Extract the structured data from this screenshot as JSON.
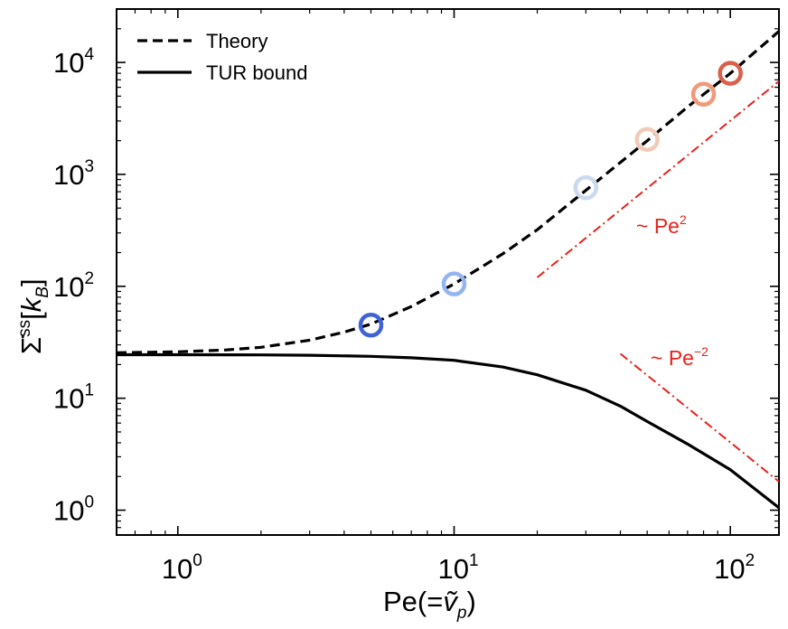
{
  "chart_data": {
    "type": "line",
    "x_scale": "log",
    "y_scale": "log",
    "xlim": [
      0.6,
      150
    ],
    "ylim": [
      0.6,
      30000
    ],
    "xlabel": "Pe(=ṽ_p)",
    "xlabel_parts": {
      "main": "Pe(=",
      "var": "ṽ",
      "sub": "p",
      "close": ")"
    },
    "ylabel_parts": {
      "sym": "Σ̇",
      "sup": "ss",
      "bracket_open": "[",
      "var": "k",
      "sub": "B",
      "bracket_close": "]"
    },
    "x_ticks": [
      {
        "value": 1,
        "base": "10",
        "exp": "0"
      },
      {
        "value": 10,
        "base": "10",
        "exp": "1"
      },
      {
        "value": 100,
        "base": "10",
        "exp": "2"
      }
    ],
    "y_ticks": [
      {
        "value": 1,
        "base": "10",
        "exp": "0"
      },
      {
        "value": 10,
        "base": "10",
        "exp": "1"
      },
      {
        "value": 100,
        "base": "10",
        "exp": "2"
      },
      {
        "value": 1000,
        "base": "10",
        "exp": "3"
      },
      {
        "value": 10000,
        "base": "10",
        "exp": "4"
      }
    ],
    "grid": false,
    "legend_position": "top-left",
    "series": [
      {
        "name": "Theory",
        "style": "dashed",
        "color": "#000000",
        "x": [
          0.6,
          1,
          1.5,
          2,
          3,
          4,
          5,
          7,
          10,
          15,
          20,
          30,
          50,
          70,
          100,
          150
        ],
        "y": [
          25.5,
          26,
          27,
          28.5,
          33,
          39,
          46,
          66,
          105,
          195,
          320,
          720,
          2000,
          4000,
          8000,
          19000
        ]
      },
      {
        "name": "TUR bound",
        "style": "solid",
        "color": "#000000",
        "x": [
          0.6,
          1,
          2,
          3,
          5,
          7,
          10,
          15,
          20,
          30,
          40,
          50,
          70,
          100,
          150
        ],
        "y": [
          24.5,
          24.5,
          24.4,
          24.2,
          23.7,
          23.0,
          21.8,
          19.0,
          16.2,
          11.8,
          8.5,
          6.2,
          3.9,
          2.3,
          1.05
        ]
      }
    ],
    "markers": [
      {
        "x": 5,
        "y": 45,
        "color": "#3f63d5"
      },
      {
        "x": 10,
        "y": 105,
        "color": "#94b5f2"
      },
      {
        "x": 30,
        "y": 760,
        "color": "#cbd8ee"
      },
      {
        "x": 50,
        "y": 2050,
        "color": "#f0cbb8"
      },
      {
        "x": 80,
        "y": 5200,
        "color": "#f09a7c"
      },
      {
        "x": 100,
        "y": 8000,
        "color": "#d9604a"
      }
    ],
    "scaling_lines": [
      {
        "x": [
          20,
          150
        ],
        "y": [
          120,
          6800
        ],
        "color": "#e8211b",
        "style": "dashdot",
        "label_base": "~ Pe",
        "label_exp": "2"
      },
      {
        "x": [
          40,
          150
        ],
        "y": [
          25,
          1.8
        ],
        "color": "#e8211b",
        "style": "dashdot",
        "label_base": "~ Pe",
        "label_exp": "−2"
      }
    ]
  }
}
